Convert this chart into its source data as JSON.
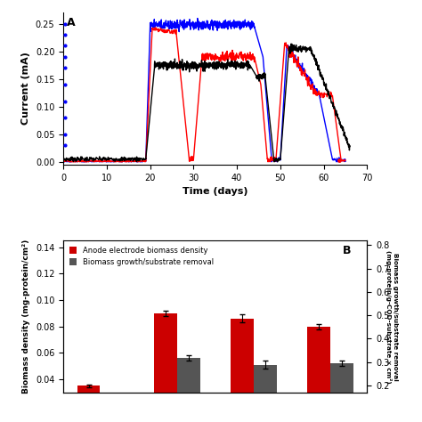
{
  "panel_A": {
    "xlabel": "Time (days)",
    "ylabel": "Current (mA)",
    "xlim": [
      0,
      70
    ],
    "ylim": [
      -0.005,
      0.27
    ],
    "yticks": [
      0,
      0.05,
      0.1,
      0.15,
      0.2,
      0.25
    ],
    "xticks": [
      0,
      10,
      20,
      30,
      40,
      50,
      60,
      70
    ]
  },
  "panel_B": {
    "ylabel_left": "Biomass density (mg-protein/cm²)",
    "ylabel_right": "Biomass growth/substrate removal\n(mg-protein/g-COD-substrate × cm²)",
    "ylim_left": [
      0.03,
      0.145
    ],
    "ylim_right": [
      0.17,
      0.82
    ],
    "yticks_left": [
      0.04,
      0.06,
      0.08,
      0.1,
      0.12,
      0.14
    ],
    "yticks_right": [
      0.2,
      0.3,
      0.4,
      0.5,
      0.6,
      0.7,
      0.8
    ],
    "red_values": [
      0.035,
      0.09,
      0.086,
      0.08
    ],
    "red_errors": [
      0.001,
      0.002,
      0.003,
      0.002
    ],
    "gray_values": [
      0.0,
      0.056,
      0.051,
      0.052
    ],
    "gray_errors": [
      0.0,
      0.002,
      0.003,
      0.002
    ],
    "legend_labels": [
      "Anode electrode biomass density",
      "Biomass growth/substrate removal"
    ],
    "legend_colors": [
      "#cc0000",
      "#555555"
    ],
    "bar_width": 0.3
  }
}
